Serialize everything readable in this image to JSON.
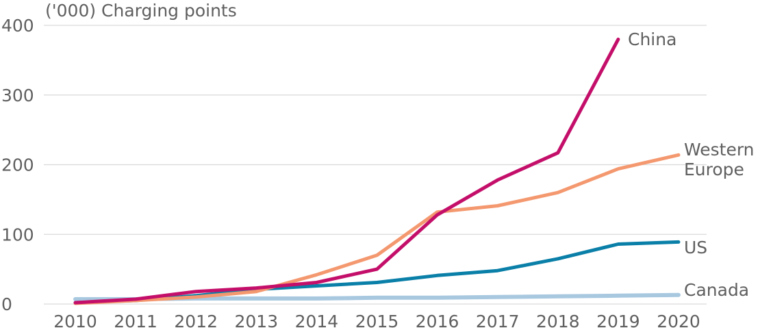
{
  "chart_data": {
    "type": "line",
    "title": "",
    "ylabel": "('000) Charging points",
    "xlabel": "",
    "categories": [
      "2010",
      "2011",
      "2012",
      "2013",
      "2014",
      "2015",
      "2016",
      "2017",
      "2018",
      "2019",
      "2020"
    ],
    "ylim": [
      0,
      400
    ],
    "yticks": [
      0,
      100,
      200,
      300,
      400
    ],
    "grid": true,
    "legend": "inline labels at line ends",
    "series": [
      {
        "name": "Canada",
        "color": "#a8c8e0",
        "values": [
          7,
          7,
          8,
          8,
          8,
          9,
          9,
          10,
          11,
          12,
          13
        ]
      },
      {
        "name": "US",
        "color": "#0a7fa8",
        "values": [
          2,
          5,
          12,
          21,
          26,
          31,
          41,
          48,
          65,
          86,
          89
        ]
      },
      {
        "name": "Western Europe",
        "color": "#f4986f",
        "values": [
          1,
          5,
          10,
          18,
          42,
          70,
          132,
          141,
          160,
          194,
          214
        ]
      },
      {
        "name": "China",
        "color": "#c40f6a",
        "values": [
          2,
          7,
          18,
          23,
          31,
          50,
          128,
          178,
          217,
          380,
          null
        ]
      }
    ],
    "series_labels": {
      "China": [
        "China"
      ],
      "Western Europe": [
        "Western",
        "Europe"
      ],
      "US": [
        "US"
      ],
      "Canada": [
        "Canada"
      ]
    }
  }
}
